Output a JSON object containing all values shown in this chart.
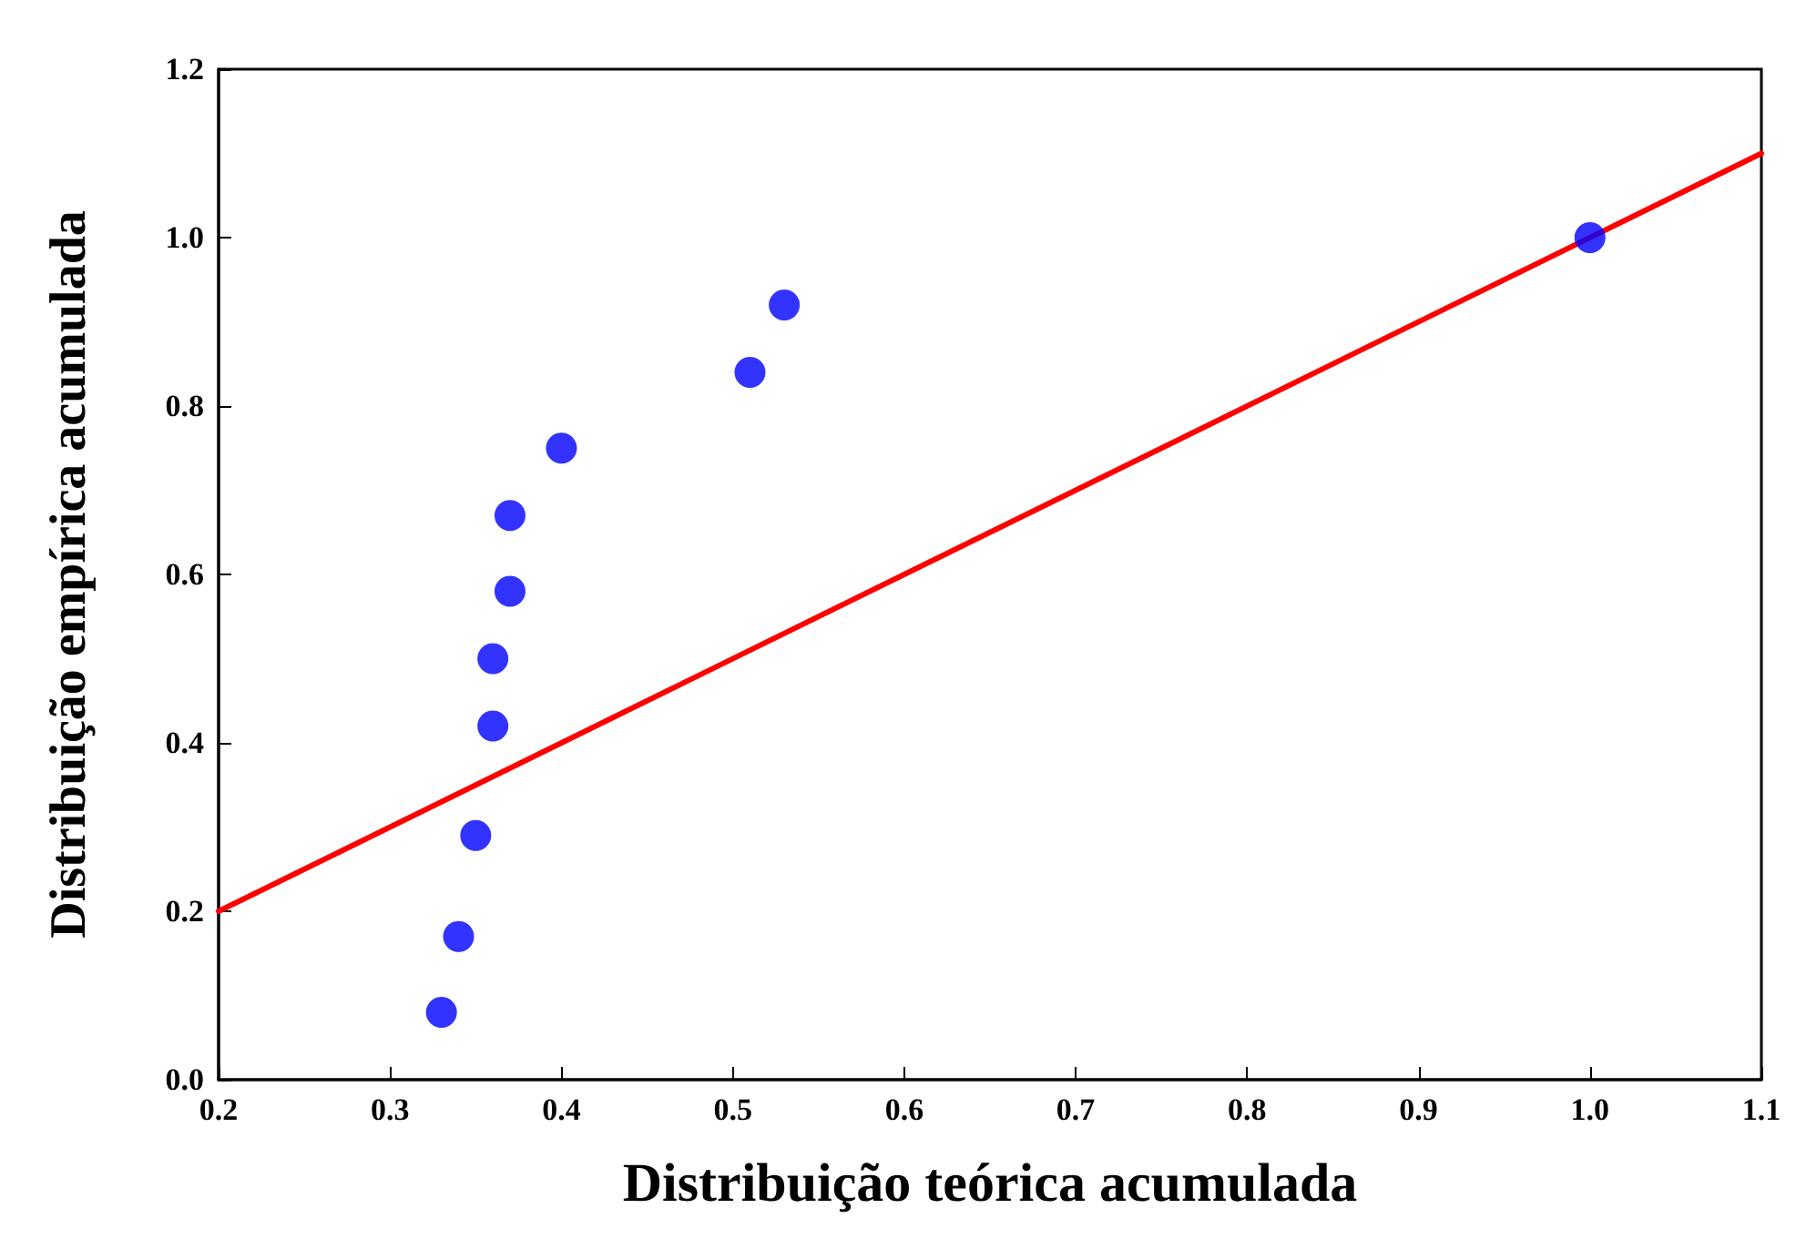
{
  "chart_data": {
    "type": "scatter",
    "xlabel": "Distribuição teórica acumulada",
    "ylabel": "Distribuição empírica acumulada",
    "x": [
      0.33,
      0.34,
      0.35,
      0.36,
      0.36,
      0.37,
      0.37,
      0.4,
      0.51,
      0.53,
      1.0
    ],
    "series": [
      {
        "color": "#0000ff",
        "marker": "circle",
        "values": [
          0.08,
          0.17,
          0.29,
          0.42,
          0.5,
          0.58,
          0.67,
          0.75,
          0.84,
          0.92,
          1.0
        ]
      },
      {
        "type": "line",
        "color": "#ff0000",
        "marker": "none",
        "x": [
          0.2,
          1.1
        ],
        "values": [
          0.2,
          1.1
        ]
      }
    ],
    "xlim": [
      0.2,
      1.1
    ],
    "xticks": [
      0.2,
      0.3,
      0.4,
      0.5,
      0.6,
      0.7,
      0.8,
      0.9,
      {
        "value": 1,
        "label": "1.0"
      },
      1.1
    ],
    "ylim": [
      0,
      1.2
    ],
    "yticks": [
      {
        "value": 0,
        "label": "0.0"
      },
      0.2,
      0.4,
      0.6,
      0.8,
      {
        "value": 1,
        "label": "1.0"
      },
      1.2
    ],
    "grid": false
  }
}
